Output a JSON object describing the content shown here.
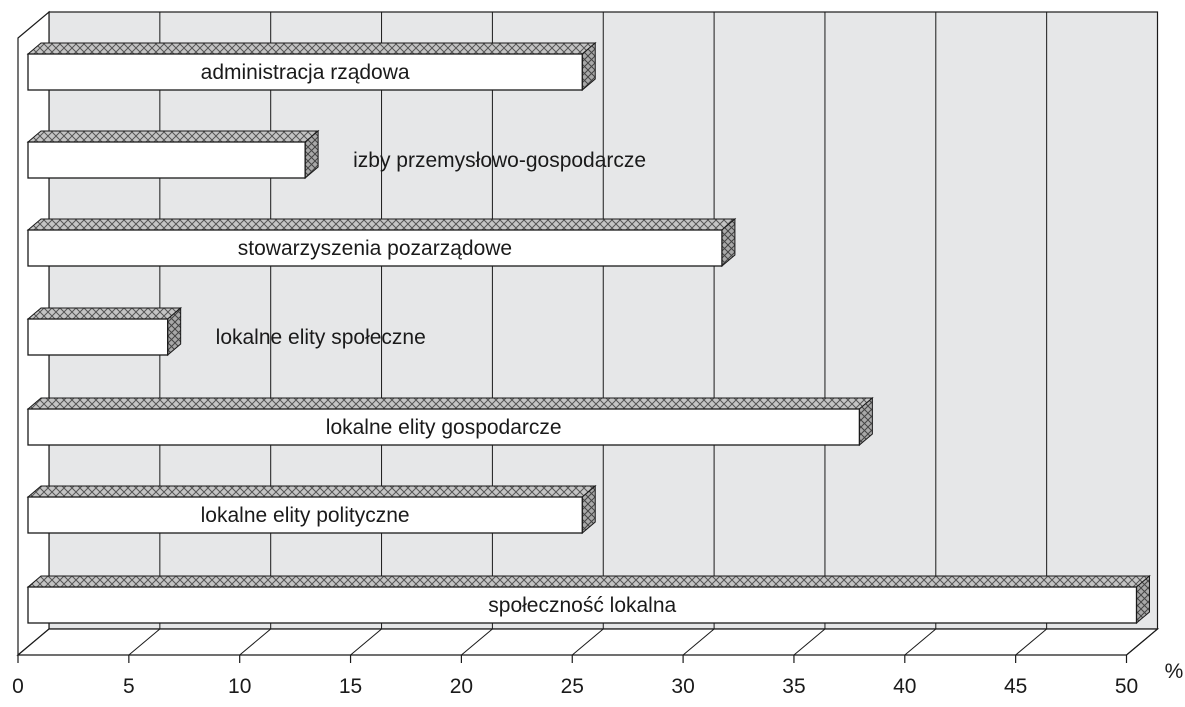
{
  "chart_data": {
    "type": "bar",
    "orientation": "horizontal",
    "style": "3d",
    "unit": "%",
    "categories": [
      "administracja rządowa",
      "izby przemysłowo-gospodarcze",
      "stowarzyszenia pozarządowe",
      "lokalne elity społeczne",
      "lokalne elity gospodarcze",
      "lokalne elity polityczne",
      "społeczność lokalna"
    ],
    "values": [
      25,
      12.5,
      31.3,
      6.3,
      37.5,
      25,
      50
    ],
    "x_ticks": [
      "0",
      "5",
      "10",
      "15",
      "20",
      "25",
      "30",
      "35",
      "40",
      "45",
      "50"
    ],
    "xlim": [
      0,
      50
    ],
    "grid": true,
    "legend": "none",
    "colors": {
      "bar_fill": "#ffffff",
      "bar_top": "#bdbdbd",
      "bar_side": "#9e9e9e",
      "wall": "#e6e7e8",
      "grid": "#1a1a1a",
      "outline": "#1a1a1a"
    }
  }
}
